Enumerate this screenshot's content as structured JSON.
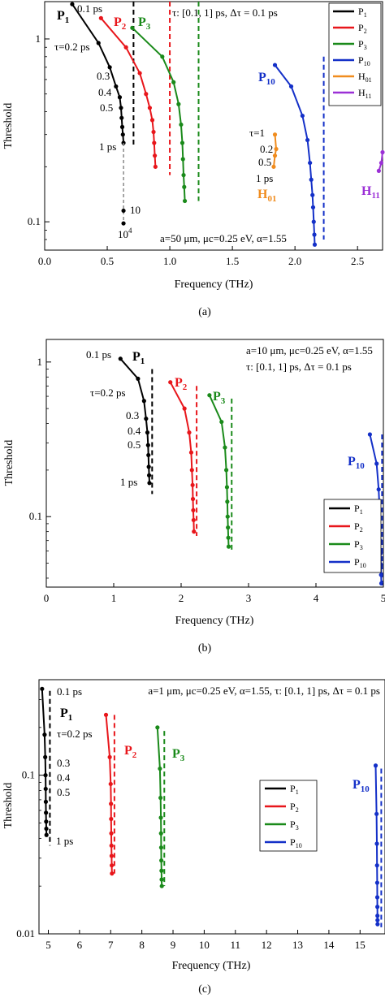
{
  "figure": {
    "captions": [
      "(a)",
      "(b)",
      "(c)"
    ]
  },
  "chart_data": [
    {
      "type": "line",
      "panel": "a",
      "xlabel": "Frequency (THz)",
      "ylabel": "Threshold",
      "xlim": [
        0,
        2.7
      ],
      "ylim": [
        0.07,
        1.6
      ],
      "log_y": true,
      "x_ticks": [
        "0.0",
        "0.5",
        "1.0",
        "1.5",
        "2.0",
        "2.5"
      ],
      "x_tick_values": [
        0,
        0.5,
        1.0,
        1.5,
        2.0,
        2.5
      ],
      "y_ticks": [
        "0.1",
        "1"
      ],
      "y_tick_values": [
        0.1,
        1
      ],
      "legend_placement": "top-right",
      "legend": [
        {
          "label": "P",
          "sub": "1",
          "color": "#000000"
        },
        {
          "label": "P",
          "sub": "2",
          "color": "#e8161b"
        },
        {
          "label": "P",
          "sub": "3",
          "color": "#1a8a1a"
        },
        {
          "label": "P",
          "sub": "10",
          "color": "#1430c8"
        },
        {
          "label": "H",
          "sub": "01",
          "color": "#f08c1e"
        },
        {
          "label": "H",
          "sub": "11",
          "color": "#9b30d6"
        }
      ],
      "series": [
        {
          "label": "P",
          "sub": "1",
          "color": "#000000",
          "x": [
            0.22,
            0.43,
            0.52,
            0.57,
            0.6,
            0.61,
            0.615,
            0.62,
            0.625,
            0.63
          ],
          "y": [
            1.55,
            0.95,
            0.7,
            0.55,
            0.48,
            0.42,
            0.37,
            0.33,
            0.3,
            0.27
          ]
        },
        {
          "label": "P",
          "sub": "2",
          "color": "#e8161b",
          "x": [
            0.45,
            0.65,
            0.76,
            0.81,
            0.84,
            0.86,
            0.87,
            0.875,
            0.88,
            0.885
          ],
          "y": [
            1.3,
            0.9,
            0.65,
            0.5,
            0.42,
            0.36,
            0.31,
            0.27,
            0.23,
            0.2
          ]
        },
        {
          "label": "P",
          "sub": "3",
          "color": "#1a8a1a",
          "x": [
            0.7,
            0.94,
            1.03,
            1.07,
            1.09,
            1.1,
            1.105,
            1.11,
            1.115,
            1.12
          ],
          "y": [
            1.15,
            0.8,
            0.58,
            0.44,
            0.34,
            0.27,
            0.22,
            0.18,
            0.155,
            0.13
          ]
        },
        {
          "label": "P",
          "sub": "10",
          "color": "#1430c8",
          "x": [
            1.84,
            1.97,
            2.06,
            2.1,
            2.12,
            2.13,
            2.14,
            2.145,
            2.15,
            2.155,
            2.158
          ],
          "y": [
            0.72,
            0.55,
            0.38,
            0.28,
            0.21,
            0.17,
            0.14,
            0.12,
            0.1,
            0.085,
            0.075
          ]
        },
        {
          "label": "H",
          "sub": "01",
          "color": "#f08c1e",
          "x": [
            1.84,
            1.85,
            1.84,
            1.83
          ],
          "y": [
            0.3,
            0.25,
            0.23,
            0.2
          ]
        },
        {
          "label": "H",
          "sub": "11",
          "color": "#9b30d6",
          "x": [
            2.67,
            2.69,
            2.7
          ],
          "y": [
            0.19,
            0.21,
            0.24
          ]
        },
        {
          "label": "",
          "color": "#888888",
          "dash": true,
          "marker_points": [
            [
              0.63,
              0.115
            ],
            [
              0.63,
              0.098
            ]
          ],
          "x": [
            0.63,
            0.63
          ],
          "y": [
            0.27,
            0.098
          ]
        }
      ],
      "vlines": [
        {
          "x": 0.71,
          "y": [
            0.26,
            1.6
          ],
          "color": "#000000"
        },
        {
          "x": 1.0,
          "y": [
            0.18,
            1.6
          ],
          "color": "#e8161b"
        },
        {
          "x": 1.23,
          "y": [
            0.13,
            1.6
          ],
          "color": "#1a8a1a"
        },
        {
          "x": 2.23,
          "y": [
            0.08,
            0.8
          ],
          "color": "#1430c8"
        }
      ],
      "annotations": {
        "tau_range": "τ: [0.1, 1] ps, Δτ = 0.1 ps",
        "params": "a=50 μm, μc=0.25 eV, α=1.55",
        "p1_tau_top": "0.1 ps",
        "p1_tau_02": "τ=0.2 ps",
        "p1_03": "0.3",
        "p1_04": "0.4",
        "p1_05": "0.5",
        "p1_1ps": "1 ps",
        "p1_10": "10",
        "p1_10e4_base": "10",
        "p1_10e4_exp": "4",
        "h01_tau1": "τ=1",
        "h01_02": "0.2",
        "h01_05": "0.5",
        "h01_1ps": "1 ps"
      }
    },
    {
      "type": "line",
      "panel": "b",
      "xlabel": "Frequency (THz)",
      "ylabel": "Threshold",
      "xlim": [
        0,
        5
      ],
      "ylim": [
        0.035,
        1.4
      ],
      "log_y": true,
      "x_ticks": [
        "0",
        "1",
        "2",
        "3",
        "4",
        "5"
      ],
      "x_tick_values": [
        0,
        1,
        2,
        3,
        4,
        5
      ],
      "y_ticks": [
        "0.1",
        "1"
      ],
      "y_tick_values": [
        0.1,
        1
      ],
      "legend_placement": "center-right",
      "legend": [
        {
          "label": "P",
          "sub": "1",
          "color": "#000000"
        },
        {
          "label": "P",
          "sub": "2",
          "color": "#e8161b"
        },
        {
          "label": "P",
          "sub": "3",
          "color": "#1a8a1a"
        },
        {
          "label": "P",
          "sub": "10",
          "color": "#1430c8"
        }
      ],
      "series": [
        {
          "label": "P",
          "sub": "1",
          "color": "#000000",
          "x": [
            1.1,
            1.36,
            1.45,
            1.48,
            1.5,
            1.51,
            1.515,
            1.52,
            1.525,
            1.53
          ],
          "y": [
            1.05,
            0.78,
            0.56,
            0.43,
            0.35,
            0.29,
            0.25,
            0.21,
            0.185,
            0.165
          ]
        },
        {
          "label": "P",
          "sub": "2",
          "color": "#e8161b",
          "x": [
            1.84,
            2.05,
            2.12,
            2.15,
            2.16,
            2.17,
            2.175,
            2.18,
            2.185,
            2.19
          ],
          "y": [
            0.74,
            0.5,
            0.35,
            0.26,
            0.2,
            0.16,
            0.13,
            0.11,
            0.095,
            0.08
          ]
        },
        {
          "label": "P",
          "sub": "3",
          "color": "#1a8a1a",
          "x": [
            2.42,
            2.6,
            2.65,
            2.67,
            2.68,
            2.685,
            2.69,
            2.695,
            2.7,
            2.705
          ],
          "y": [
            0.61,
            0.41,
            0.28,
            0.2,
            0.155,
            0.125,
            0.1,
            0.085,
            0.073,
            0.064
          ]
        },
        {
          "label": "P",
          "sub": "10",
          "color": "#1430c8",
          "x": [
            4.8,
            4.9,
            4.93,
            4.945,
            4.95,
            4.955,
            4.96,
            4.963,
            4.966,
            4.97
          ],
          "y": [
            0.34,
            0.22,
            0.15,
            0.11,
            0.085,
            0.07,
            0.058,
            0.049,
            0.042,
            0.037
          ]
        }
      ],
      "vlines": [
        {
          "x": 1.57,
          "y": [
            0.14,
            0.9
          ],
          "color": "#000000"
        },
        {
          "x": 2.23,
          "y": [
            0.075,
            0.7
          ],
          "color": "#e8161b"
        },
        {
          "x": 2.75,
          "y": [
            0.06,
            0.58
          ],
          "color": "#1a8a1a"
        },
        {
          "x": 4.98,
          "y": [
            0.035,
            0.34
          ],
          "color": "#1430c8"
        }
      ],
      "annotations": {
        "params": "a=10 μm, μc=0.25 eV, α=1.55",
        "tau_range": "τ: [0.1, 1] ps, Δτ = 0.1 ps",
        "p1_tau_top": "0.1 ps",
        "p1_tau_02": "τ=0.2 ps",
        "p1_03": "0.3",
        "p1_04": "0.4",
        "p1_05": "0.5",
        "p1_1ps": "1 ps"
      }
    },
    {
      "type": "line",
      "panel": "c",
      "xlabel": "Frequency (THz)",
      "ylabel": "Threshold",
      "xlim": [
        4.7,
        15.8
      ],
      "ylim": [
        0.01,
        0.4
      ],
      "log_y": true,
      "x_ticks": [
        "5",
        "6",
        "7",
        "8",
        "9",
        "10",
        "11",
        "12",
        "13",
        "14",
        "15"
      ],
      "x_tick_values": [
        5,
        6,
        7,
        8,
        9,
        10,
        11,
        12,
        13,
        14,
        15
      ],
      "y_ticks": [
        "0.01",
        "0.1"
      ],
      "y_tick_values": [
        0.01,
        0.1
      ],
      "legend_placement": "center-right",
      "legend": [
        {
          "label": "P",
          "sub": "1",
          "color": "#000000"
        },
        {
          "label": "P",
          "sub": "2",
          "color": "#e8161b"
        },
        {
          "label": "P",
          "sub": "3",
          "color": "#1a8a1a"
        },
        {
          "label": "P",
          "sub": "10",
          "color": "#1430c8"
        }
      ],
      "series": [
        {
          "label": "P",
          "sub": "1",
          "color": "#000000",
          "x": [
            4.8,
            4.88,
            4.9,
            4.91,
            4.915,
            4.92,
            4.925,
            4.93,
            4.935,
            4.94
          ],
          "y": [
            0.35,
            0.18,
            0.13,
            0.1,
            0.082,
            0.068,
            0.058,
            0.051,
            0.046,
            0.042
          ]
        },
        {
          "label": "P",
          "sub": "2",
          "color": "#e8161b",
          "x": [
            6.85,
            6.97,
            7.0,
            7.01,
            7.015,
            7.02,
            7.025,
            7.03,
            7.035,
            7.04
          ],
          "y": [
            0.24,
            0.13,
            0.088,
            0.066,
            0.053,
            0.043,
            0.036,
            0.031,
            0.027,
            0.024
          ]
        },
        {
          "label": "P",
          "sub": "3",
          "color": "#1a8a1a",
          "x": [
            8.5,
            8.58,
            8.6,
            8.61,
            8.615,
            8.62,
            8.625,
            8.63,
            8.635,
            8.64
          ],
          "y": [
            0.2,
            0.11,
            0.072,
            0.054,
            0.043,
            0.035,
            0.029,
            0.025,
            0.022,
            0.02
          ]
        },
        {
          "label": "P",
          "sub": "10",
          "color": "#1430c8",
          "x": [
            15.5,
            15.53,
            15.54,
            15.545,
            15.55,
            15.553,
            15.556,
            15.558,
            15.56,
            15.562
          ],
          "y": [
            0.115,
            0.057,
            0.037,
            0.027,
            0.021,
            0.017,
            0.0148,
            0.013,
            0.0122,
            0.0115
          ]
        }
      ],
      "vlines": [
        {
          "x": 5.05,
          "y": [
            0.036,
            0.34
          ],
          "color": "#000000"
        },
        {
          "x": 7.12,
          "y": [
            0.024,
            0.24
          ],
          "color": "#e8161b"
        },
        {
          "x": 8.72,
          "y": [
            0.02,
            0.19
          ],
          "color": "#1a8a1a"
        },
        {
          "x": 15.68,
          "y": [
            0.011,
            0.11
          ],
          "color": "#1430c8"
        }
      ],
      "annotations": {
        "params": "a=1 μm, μc=0.25 eV, α=1.55, τ: [0.1, 1] ps, Δτ = 0.1 ps",
        "p1_tau_top": "0.1 ps",
        "p1_tau_02": "τ=0.2 ps",
        "p1_03": "0.3",
        "p1_04": "0.4",
        "p1_05": "0.5",
        "p1_1ps": "1 ps"
      }
    }
  ]
}
